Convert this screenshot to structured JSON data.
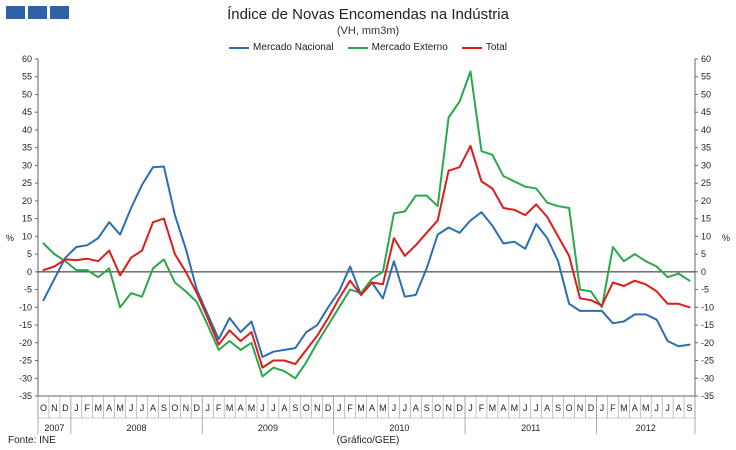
{
  "header": {
    "title": "Índice de Novas Encomendas na Indústria",
    "subtitle": "(VH, mm3m)"
  },
  "footer": {
    "source": "Fonte: INE",
    "credit": "(Gráfico/GEE)"
  },
  "colors": {
    "nacional": "#2b6fb0",
    "externo": "#2aa84a",
    "total": "#dd1c1c",
    "logo": "#2d63a6"
  },
  "logo_icon": "three-blue-squares-logo",
  "chart_data": {
    "type": "line",
    "y_axis_label_left": "%",
    "y_axis_label_right": "%",
    "ylim": [
      -35,
      60
    ],
    "yticks": [
      -35,
      -30,
      -25,
      -20,
      -15,
      -10,
      -5,
      0,
      5,
      10,
      15,
      20,
      25,
      30,
      35,
      40,
      45,
      50,
      55,
      60
    ],
    "grid": false,
    "legend_position": "top-center",
    "month_labels": [
      "O",
      "N",
      "D",
      "J",
      "F",
      "M",
      "A",
      "M",
      "J",
      "J",
      "A",
      "S",
      "O",
      "N",
      "D",
      "J",
      "F",
      "M",
      "A",
      "M",
      "J",
      "J",
      "A",
      "S",
      "O",
      "N",
      "D",
      "J",
      "F",
      "M",
      "A",
      "M",
      "J",
      "J",
      "A",
      "S",
      "O",
      "N",
      "D",
      "J",
      "F",
      "M",
      "A",
      "M",
      "J",
      "J",
      "A",
      "S",
      "O",
      "N",
      "D",
      "J",
      "F",
      "M",
      "A",
      "M",
      "J",
      "J",
      "A",
      "S"
    ],
    "years": [
      {
        "label": "2007",
        "start": 0,
        "count": 3
      },
      {
        "label": "2008",
        "start": 3,
        "count": 12
      },
      {
        "label": "2009",
        "start": 15,
        "count": 12
      },
      {
        "label": "2010",
        "start": 27,
        "count": 12
      },
      {
        "label": "2011",
        "start": 39,
        "count": 12
      },
      {
        "label": "2012",
        "start": 51,
        "count": 9
      }
    ],
    "series": [
      {
        "name": "Mercado Nacional",
        "key": "nacional",
        "values": [
          -8,
          -2,
          4,
          7,
          7.5,
          9.5,
          14,
          10.5,
          18,
          24.5,
          29.5,
          29.7,
          16,
          6.5,
          -5,
          -12,
          -19,
          -13,
          -17,
          -14,
          -24,
          -22.5,
          -22,
          -21.5,
          -17,
          -15,
          -10,
          -5.5,
          1.5,
          -6.5,
          -3,
          -7.5,
          3,
          -7,
          -6.5,
          1,
          10.5,
          12.5,
          11,
          14.5,
          16.8,
          13,
          8,
          8.5,
          6.5,
          13.5,
          9.5,
          3,
          -9,
          -11,
          -11,
          -11,
          -14.5,
          -14,
          -12,
          -12,
          -13.5,
          -19.5,
          -21,
          -20.5
        ]
      },
      {
        "name": "Mercado Externo",
        "key": "externo",
        "values": [
          8,
          5,
          3,
          0.5,
          0.5,
          -1.5,
          1,
          -10,
          -6,
          -7,
          1,
          3.5,
          -3,
          -5.5,
          -8.5,
          -15,
          -22,
          -19.5,
          -22,
          -20,
          -29.5,
          -27,
          -28,
          -30,
          -25.5,
          -20,
          -15,
          -10,
          -5,
          -6,
          -2,
          0,
          16.5,
          17,
          21.5,
          21.5,
          18.5,
          43.5,
          48,
          56.5,
          34,
          33,
          27,
          25.5,
          24,
          23.5,
          19.5,
          18.5,
          18,
          -5,
          -5.5,
          -10,
          7,
          3,
          5,
          3,
          1.5,
          -1.5,
          -0.5,
          -2.5
        ]
      },
      {
        "name": "Total",
        "key": "total",
        "values": [
          0.5,
          1.5,
          3.5,
          3.3,
          3.7,
          3,
          6,
          -1,
          4,
          6,
          14,
          15,
          5,
          0,
          -6,
          -13,
          -20.5,
          -16.5,
          -19.5,
          -17,
          -27,
          -25,
          -25,
          -26,
          -22,
          -18,
          -13,
          -7.5,
          -2.5,
          -6.5,
          -3,
          -3.5,
          9.5,
          4.5,
          7.5,
          11,
          14.5,
          28.5,
          29.5,
          35.5,
          25.5,
          23.5,
          18,
          17.5,
          16,
          19,
          15.5,
          10,
          4.5,
          -7.5,
          -8,
          -9.5,
          -3,
          -4,
          -2.5,
          -3.5,
          -5.5,
          -9,
          -9,
          -10
        ]
      }
    ]
  }
}
